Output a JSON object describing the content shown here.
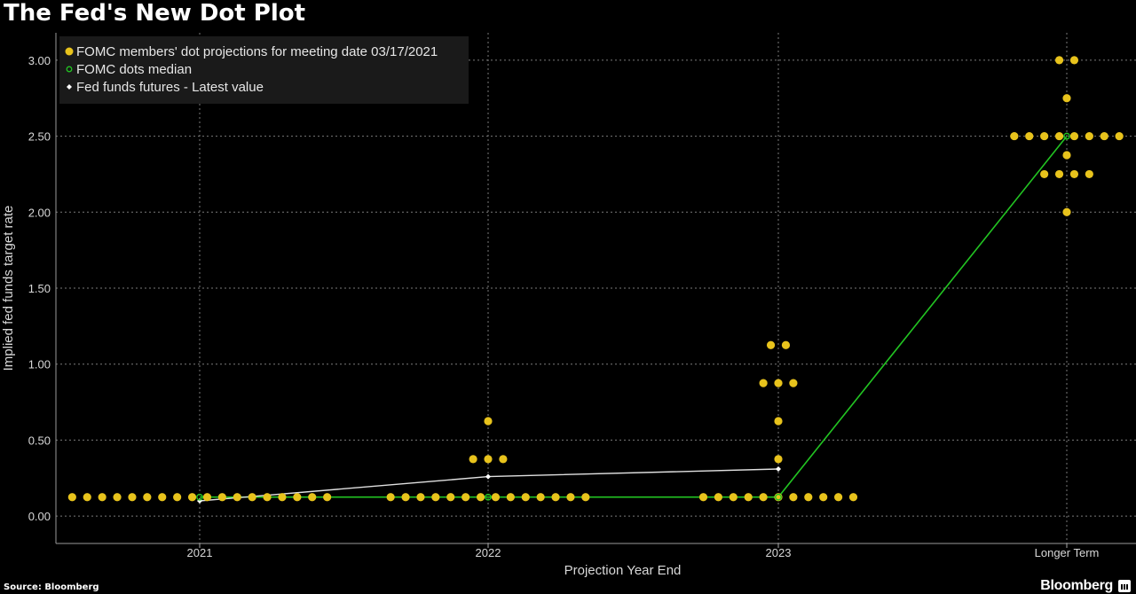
{
  "title": "The Fed's New Dot Plot",
  "source": "Source: Bloomberg",
  "brand": "Bloomberg",
  "colors": {
    "background": "#000000",
    "dots": "#e8c31c",
    "median_line": "#22c422",
    "futures_line": "#e0e0e0",
    "grid": "#7a7a7a"
  },
  "chart_data": {
    "type": "scatter",
    "xlabel": "Projection Year End",
    "ylabel": "Implied fed funds target rate",
    "categories": [
      "2021",
      "2022",
      "2023",
      "Longer Term"
    ],
    "ylim": [
      -0.18,
      3.18
    ],
    "yticks": [
      "0.00",
      "0.50",
      "1.00",
      "1.50",
      "2.00",
      "2.50",
      "3.00"
    ],
    "grid": true,
    "legend_position": "top-left",
    "legend": [
      {
        "label": "FOMC members' dot projections for meeting date 03/17/2021",
        "marker": "dot"
      },
      {
        "label": "FOMC dots median",
        "marker": "open-circle"
      },
      {
        "label": "Fed funds futures - Latest value",
        "marker": "diamond"
      }
    ],
    "dot_projections": [
      {
        "category": "2021",
        "counts": [
          {
            "rate": 0.125,
            "count": 18
          }
        ]
      },
      {
        "category": "2022",
        "counts": [
          {
            "rate": 0.125,
            "count": 14
          },
          {
            "rate": 0.375,
            "count": 3
          },
          {
            "rate": 0.625,
            "count": 1
          }
        ]
      },
      {
        "category": "2023",
        "counts": [
          {
            "rate": 0.125,
            "count": 11
          },
          {
            "rate": 0.375,
            "count": 1
          },
          {
            "rate": 0.625,
            "count": 1
          },
          {
            "rate": 0.875,
            "count": 3
          },
          {
            "rate": 1.125,
            "count": 2
          }
        ]
      },
      {
        "category": "Longer Term",
        "counts": [
          {
            "rate": 2.0,
            "count": 1
          },
          {
            "rate": 2.25,
            "count": 4
          },
          {
            "rate": 2.375,
            "count": 1
          },
          {
            "rate": 2.5,
            "count": 8
          },
          {
            "rate": 2.75,
            "count": 1
          },
          {
            "rate": 3.0,
            "count": 2
          }
        ]
      }
    ],
    "series": [
      {
        "name": "FOMC dots median",
        "values": [
          0.125,
          0.125,
          0.125,
          2.5
        ]
      },
      {
        "name": "Fed funds futures - Latest value",
        "values": [
          0.1,
          0.26,
          0.31,
          null
        ]
      }
    ]
  }
}
